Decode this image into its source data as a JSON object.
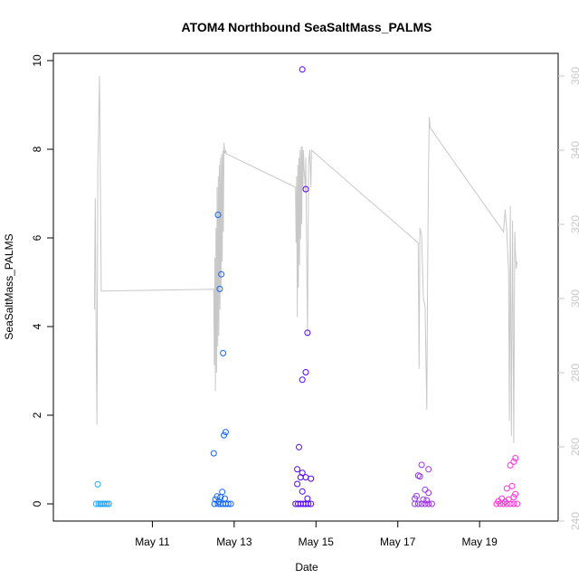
{
  "chart_data": {
    "type": "scatter",
    "title": "ATOM4 Northbound SeaSaltMass_PALMS",
    "xlabel": "Date",
    "ylabel": "SeaSaltMass_PALMS",
    "ylim": [
      0,
      10
    ],
    "xlim": [
      "2018-05-09T00:00",
      "2018-05-20T12:00"
    ],
    "x_ticks": [
      "May 11",
      "May 13",
      "May 15",
      "May 17",
      "May 19"
    ],
    "y_ticks": [
      0,
      2,
      4,
      6,
      8,
      10
    ],
    "right_axis": {
      "ylim": [
        240,
        360
      ],
      "ticks": [
        240,
        260,
        280,
        300,
        320,
        340,
        360
      ],
      "color": "#c8c8c8"
    },
    "grid": false,
    "line_color": "#c8c8c8",
    "point_colors": [
      "#22aaff",
      "#1166ff",
      "#5500ff",
      "#9933ee",
      "#ff33dd"
    ],
    "points": [
      {
        "x": "2018-05-09T16:00",
        "y": 0.44,
        "g": 0
      },
      {
        "x": "2018-05-09T15:00",
        "y": 0.0,
        "g": 0
      },
      {
        "x": "2018-05-09T16:30",
        "y": 0.0,
        "g": 0
      },
      {
        "x": "2018-05-09T17:30",
        "y": 0.0,
        "g": 0
      },
      {
        "x": "2018-05-09T18:30",
        "y": 0.0,
        "g": 0
      },
      {
        "x": "2018-05-09T19:30",
        "y": 0.0,
        "g": 0
      },
      {
        "x": "2018-05-09T20:30",
        "y": 0.0,
        "g": 0
      },
      {
        "x": "2018-05-09T21:30",
        "y": 0.0,
        "g": 0
      },
      {
        "x": "2018-05-09T22:30",
        "y": 0.0,
        "g": 0
      },
      {
        "x": "2018-05-12T14:30",
        "y": 6.52,
        "g": 1
      },
      {
        "x": "2018-05-12T16:30",
        "y": 5.18,
        "g": 1
      },
      {
        "x": "2018-05-12T15:30",
        "y": 4.85,
        "g": 1
      },
      {
        "x": "2018-05-12T17:30",
        "y": 3.4,
        "g": 1
      },
      {
        "x": "2018-05-12T19:00",
        "y": 1.62,
        "g": 1
      },
      {
        "x": "2018-05-12T18:00",
        "y": 1.55,
        "g": 1
      },
      {
        "x": "2018-05-12T12:00",
        "y": 1.14,
        "g": 1
      },
      {
        "x": "2018-05-12T17:00",
        "y": 0.27,
        "g": 1
      },
      {
        "x": "2018-05-12T14:00",
        "y": 0.17,
        "g": 1
      },
      {
        "x": "2018-05-12T16:00",
        "y": 0.15,
        "g": 1
      },
      {
        "x": "2018-05-12T18:30",
        "y": 0.12,
        "g": 1
      },
      {
        "x": "2018-05-12T13:00",
        "y": 0.1,
        "g": 1
      },
      {
        "x": "2018-05-12T15:00",
        "y": 0.05,
        "g": 1
      },
      {
        "x": "2018-05-12T12:30",
        "y": 0.0,
        "g": 1
      },
      {
        "x": "2018-05-12T14:30",
        "y": 0.0,
        "g": 1
      },
      {
        "x": "2018-05-12T16:00",
        "y": 0.0,
        "g": 1
      },
      {
        "x": "2018-05-12T17:30",
        "y": 0.0,
        "g": 1
      },
      {
        "x": "2018-05-12T19:00",
        "y": 0.0,
        "g": 1
      },
      {
        "x": "2018-05-12T20:30",
        "y": 0.0,
        "g": 1
      },
      {
        "x": "2018-05-12T22:00",
        "y": 0.0,
        "g": 1
      },
      {
        "x": "2018-05-14T16:00",
        "y": 9.8,
        "g": 2
      },
      {
        "x": "2018-05-14T18:00",
        "y": 7.1,
        "g": 2
      },
      {
        "x": "2018-05-14T19:00",
        "y": 3.86,
        "g": 2
      },
      {
        "x": "2018-05-14T18:00",
        "y": 2.97,
        "g": 2
      },
      {
        "x": "2018-05-14T16:00",
        "y": 2.8,
        "g": 2
      },
      {
        "x": "2018-05-14T14:00",
        "y": 1.28,
        "g": 2
      },
      {
        "x": "2018-05-14T13:00",
        "y": 0.78,
        "g": 2
      },
      {
        "x": "2018-05-14T16:00",
        "y": 0.7,
        "g": 2
      },
      {
        "x": "2018-05-14T15:00",
        "y": 0.6,
        "g": 2
      },
      {
        "x": "2018-05-14T18:00",
        "y": 0.6,
        "g": 2
      },
      {
        "x": "2018-05-14T21:00",
        "y": 0.57,
        "g": 2
      },
      {
        "x": "2018-05-14T13:00",
        "y": 0.45,
        "g": 2
      },
      {
        "x": "2018-05-14T16:00",
        "y": 0.28,
        "g": 2
      },
      {
        "x": "2018-05-14T19:00",
        "y": 0.12,
        "g": 2
      },
      {
        "x": "2018-05-14T12:00",
        "y": 0.0,
        "g": 2
      },
      {
        "x": "2018-05-14T13:30",
        "y": 0.0,
        "g": 2
      },
      {
        "x": "2018-05-14T15:00",
        "y": 0.0,
        "g": 2
      },
      {
        "x": "2018-05-14T16:30",
        "y": 0.0,
        "g": 2
      },
      {
        "x": "2018-05-14T18:00",
        "y": 0.0,
        "g": 2
      },
      {
        "x": "2018-05-14T19:30",
        "y": 0.0,
        "g": 2
      },
      {
        "x": "2018-05-14T21:00",
        "y": 0.0,
        "g": 2
      },
      {
        "x": "2018-05-17T14:00",
        "y": 0.88,
        "g": 3
      },
      {
        "x": "2018-05-17T18:00",
        "y": 0.78,
        "g": 3
      },
      {
        "x": "2018-05-17T12:00",
        "y": 0.64,
        "g": 3
      },
      {
        "x": "2018-05-17T13:00",
        "y": 0.62,
        "g": 3
      },
      {
        "x": "2018-05-17T16:00",
        "y": 0.32,
        "g": 3
      },
      {
        "x": "2018-05-17T18:00",
        "y": 0.25,
        "g": 3
      },
      {
        "x": "2018-05-17T10:00",
        "y": 0.12,
        "g": 3
      },
      {
        "x": "2018-05-17T11:00",
        "y": 0.18,
        "g": 3
      },
      {
        "x": "2018-05-17T15:00",
        "y": 0.1,
        "g": 3
      },
      {
        "x": "2018-05-17T17:00",
        "y": 0.08,
        "g": 3
      },
      {
        "x": "2018-05-17T10:00",
        "y": 0.0,
        "g": 3
      },
      {
        "x": "2018-05-17T12:00",
        "y": 0.0,
        "g": 3
      },
      {
        "x": "2018-05-17T14:00",
        "y": 0.0,
        "g": 3
      },
      {
        "x": "2018-05-17T16:00",
        "y": 0.0,
        "g": 3
      },
      {
        "x": "2018-05-17T18:00",
        "y": 0.0,
        "g": 3
      },
      {
        "x": "2018-05-17T20:00",
        "y": 0.0,
        "g": 3
      },
      {
        "x": "2018-05-19T21:00",
        "y": 1.03,
        "g": 4
      },
      {
        "x": "2018-05-19T20:00",
        "y": 0.95,
        "g": 4
      },
      {
        "x": "2018-05-19T18:00",
        "y": 0.87,
        "g": 4
      },
      {
        "x": "2018-05-19T19:00",
        "y": 0.4,
        "g": 4
      },
      {
        "x": "2018-05-19T16:00",
        "y": 0.35,
        "g": 4
      },
      {
        "x": "2018-05-19T21:00",
        "y": 0.22,
        "g": 4
      },
      {
        "x": "2018-05-19T13:00",
        "y": 0.12,
        "g": 4
      },
      {
        "x": "2018-05-19T17:00",
        "y": 0.1,
        "g": 4
      },
      {
        "x": "2018-05-19T20:00",
        "y": 0.15,
        "g": 4
      },
      {
        "x": "2018-05-19T11:00",
        "y": 0.06,
        "g": 4
      },
      {
        "x": "2018-05-19T15:00",
        "y": 0.05,
        "g": 4
      },
      {
        "x": "2018-05-19T10:00",
        "y": 0.0,
        "g": 4
      },
      {
        "x": "2018-05-19T12:00",
        "y": 0.0,
        "g": 4
      },
      {
        "x": "2018-05-19T14:00",
        "y": 0.0,
        "g": 4
      },
      {
        "x": "2018-05-19T16:00",
        "y": 0.0,
        "g": 4
      },
      {
        "x": "2018-05-19T18:00",
        "y": 0.0,
        "g": 4
      },
      {
        "x": "2018-05-19T20:00",
        "y": 0.0,
        "g": 4
      },
      {
        "x": "2018-05-19T22:00",
        "y": 0.0,
        "g": 4
      }
    ],
    "line": [
      [
        "2018-05-09T14:00",
        297
      ],
      [
        "2018-05-09T14:30",
        327
      ],
      [
        "2018-05-09T15:00",
        290
      ],
      [
        "2018-05-09T15:30",
        266
      ],
      [
        "2018-05-09T16:00",
        335
      ],
      [
        "2018-05-09T17:00",
        360
      ],
      [
        "2018-05-09T18:00",
        302
      ],
      [
        "2018-05-12T12:00",
        302.5
      ],
      [
        "2018-05-12T12:20",
        282
      ],
      [
        "2018-05-12T12:40",
        311
      ],
      [
        "2018-05-12T13:00",
        275
      ],
      [
        "2018-05-12T13:20",
        319
      ],
      [
        "2018-05-12T13:40",
        280
      ],
      [
        "2018-05-12T14:00",
        330
      ],
      [
        "2018-05-12T14:20",
        287
      ],
      [
        "2018-05-12T14:40",
        333
      ],
      [
        "2018-05-12T15:00",
        290
      ],
      [
        "2018-05-12T15:20",
        336
      ],
      [
        "2018-05-12T15:40",
        297
      ],
      [
        "2018-05-12T16:00",
        338
      ],
      [
        "2018-05-12T16:20",
        303
      ],
      [
        "2018-05-12T16:40",
        339
      ],
      [
        "2018-05-12T17:00",
        310
      ],
      [
        "2018-05-12T17:20",
        340
      ],
      [
        "2018-05-12T17:40",
        318
      ],
      [
        "2018-05-12T18:00",
        342
      ],
      [
        "2018-05-12T18:30",
        339
      ],
      [
        "2018-05-12T19:00",
        340
      ],
      [
        "2018-05-12T19:30",
        339
      ],
      [
        "2018-05-14T12:00",
        330
      ],
      [
        "2018-05-14T12:20",
        315
      ],
      [
        "2018-05-14T12:40",
        333
      ],
      [
        "2018-05-14T13:00",
        295
      ],
      [
        "2018-05-14T13:20",
        336
      ],
      [
        "2018-05-14T13:40",
        303
      ],
      [
        "2018-05-14T14:00",
        338
      ],
      [
        "2018-05-14T14:20",
        309
      ],
      [
        "2018-05-14T14:40",
        340
      ],
      [
        "2018-05-14T15:00",
        316
      ],
      [
        "2018-05-14T15:20",
        341
      ],
      [
        "2018-05-14T15:40",
        320
      ],
      [
        "2018-05-14T16:00",
        341
      ],
      [
        "2018-05-14T16:20",
        330
      ],
      [
        "2018-05-14T16:40",
        340
      ],
      [
        "2018-05-14T17:00",
        335
      ],
      [
        "2018-05-14T17:20",
        333
      ],
      [
        "2018-05-14T17:40",
        329
      ],
      [
        "2018-05-14T18:00",
        338
      ],
      [
        "2018-05-14T19:00",
        290
      ],
      [
        "2018-05-14T19:40",
        336
      ],
      [
        "2018-05-14T20:20",
        340
      ],
      [
        "2018-05-14T21:00",
        330
      ],
      [
        "2018-05-14T21:20",
        340
      ],
      [
        "2018-05-17T12:00",
        315
      ],
      [
        "2018-05-17T12:30",
        281
      ],
      [
        "2018-05-17T13:00",
        319
      ],
      [
        "2018-05-17T13:30",
        318
      ],
      [
        "2018-05-17T14:00",
        317
      ],
      [
        "2018-05-17T15:00",
        300
      ],
      [
        "2018-05-17T16:00",
        298
      ],
      [
        "2018-05-17T17:00",
        270
      ],
      [
        "2018-05-17T17:30",
        306
      ],
      [
        "2018-05-17T18:00",
        335
      ],
      [
        "2018-05-17T18:30",
        349
      ],
      [
        "2018-05-17T19:00",
        346
      ],
      [
        "2018-05-19T14:00",
        318
      ],
      [
        "2018-05-19T15:00",
        324
      ],
      [
        "2018-05-19T16:00",
        318
      ],
      [
        "2018-05-19T17:00",
        307
      ],
      [
        "2018-05-19T17:30",
        267
      ],
      [
        "2018-05-19T18:00",
        325
      ],
      [
        "2018-05-19T18:40",
        263
      ],
      [
        "2018-05-19T19:20",
        321
      ],
      [
        "2018-05-19T20:00",
        261
      ],
      [
        "2018-05-19T20:40",
        318
      ],
      [
        "2018-05-19T21:00",
        313
      ],
      [
        "2018-05-19T21:30",
        308
      ],
      [
        "2018-05-19T22:00",
        310
      ]
    ]
  }
}
